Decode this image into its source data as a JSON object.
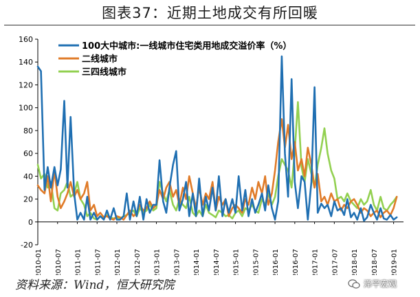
{
  "title": "图表37：近期土地成交有所回暖",
  "source": "资料来源：Wind，恒大研究院",
  "watermark": "泽平宏观",
  "chart_data": {
    "type": "line",
    "title": "图表37：近期土地成交有所回暖",
    "ylim": [
      -20,
      160
    ],
    "yticks": [
      -20,
      0,
      20,
      40,
      60,
      80,
      100,
      120,
      140,
      160
    ],
    "xlim": [
      2010.0,
      2019.25
    ],
    "xticks": [
      "2010-01",
      "2010-07",
      "2011-01",
      "2011-07",
      "2012-01",
      "2012-07",
      "2013-01",
      "2013-07",
      "2014-01",
      "2014-07",
      "2015-01",
      "2015-07",
      "2016-01",
      "2016-07",
      "2017-01",
      "2017-07",
      "2018-01",
      "2018-07",
      "2019-01"
    ],
    "legend_position": "top-left",
    "series": [
      {
        "name": "100大中城市:一线城市住宅类用地成交溢价率（%）",
        "color": "#1f6fb2",
        "x": [
          2010.0,
          2010.08,
          2010.17,
          2010.25,
          2010.33,
          2010.42,
          2010.5,
          2010.58,
          2010.67,
          2010.75,
          2010.83,
          2010.92,
          2011.0,
          2011.08,
          2011.17,
          2011.25,
          2011.33,
          2011.42,
          2011.5,
          2011.58,
          2011.67,
          2011.75,
          2011.83,
          2011.92,
          2012.0,
          2012.08,
          2012.17,
          2012.25,
          2012.33,
          2012.42,
          2012.5,
          2012.58,
          2012.67,
          2012.75,
          2012.83,
          2012.92,
          2013.0,
          2013.08,
          2013.17,
          2013.25,
          2013.33,
          2013.42,
          2013.5,
          2013.58,
          2013.67,
          2013.75,
          2013.83,
          2013.92,
          2014.0,
          2014.08,
          2014.17,
          2014.25,
          2014.33,
          2014.42,
          2014.5,
          2014.58,
          2014.67,
          2014.75,
          2014.83,
          2014.92,
          2015.0,
          2015.08,
          2015.17,
          2015.25,
          2015.33,
          2015.42,
          2015.5,
          2015.58,
          2015.67,
          2015.75,
          2015.83,
          2015.92,
          2016.0,
          2016.08,
          2016.17,
          2016.25,
          2016.33,
          2016.42,
          2016.5,
          2016.58,
          2016.67,
          2016.75,
          2016.83,
          2016.92,
          2017.0,
          2017.08,
          2017.17,
          2017.25,
          2017.33,
          2017.42,
          2017.5,
          2017.58,
          2017.67,
          2017.75,
          2017.83,
          2017.92,
          2018.0,
          2018.08,
          2018.17,
          2018.25,
          2018.33,
          2018.42,
          2018.5,
          2018.58,
          2018.67,
          2018.75,
          2018.83,
          2018.92,
          2019.0,
          2019.08
        ],
        "y": [
          136,
          132,
          28,
          48,
          30,
          48,
          32,
          46,
          106,
          30,
          92,
          25,
          2,
          8,
          2,
          22,
          2,
          8,
          2,
          5,
          2,
          10,
          2,
          12,
          2,
          2,
          5,
          25,
          2,
          18,
          5,
          22,
          2,
          20,
          8,
          15,
          15,
          54,
          18,
          8,
          30,
          50,
          62,
          10,
          20,
          35,
          5,
          25,
          5,
          38,
          5,
          22,
          10,
          30,
          10,
          40,
          5,
          20,
          8,
          20,
          8,
          40,
          10,
          28,
          5,
          20,
          8,
          15,
          25,
          10,
          32,
          12,
          2,
          18,
          145,
          60,
          22,
          125,
          35,
          12,
          40,
          35,
          2,
          35,
          118,
          8,
          16,
          12,
          15,
          5,
          18,
          10,
          12,
          6,
          20,
          4,
          8,
          2,
          12,
          1,
          4,
          15,
          8,
          2,
          12,
          3,
          2,
          6,
          2,
          4
        ]
      },
      {
        "name": "二线城市",
        "color": "#e07b28",
        "x": [
          2010.0,
          2010.08,
          2010.17,
          2010.25,
          2010.33,
          2010.42,
          2010.5,
          2010.58,
          2010.67,
          2010.75,
          2010.83,
          2010.92,
          2011.0,
          2011.08,
          2011.17,
          2011.25,
          2011.33,
          2011.42,
          2011.5,
          2011.58,
          2011.67,
          2011.75,
          2011.83,
          2011.92,
          2012.0,
          2012.08,
          2012.17,
          2012.25,
          2012.33,
          2012.42,
          2012.5,
          2012.58,
          2012.67,
          2012.75,
          2012.83,
          2012.92,
          2013.0,
          2013.08,
          2013.17,
          2013.25,
          2013.33,
          2013.42,
          2013.5,
          2013.58,
          2013.67,
          2013.75,
          2013.83,
          2013.92,
          2014.0,
          2014.08,
          2014.17,
          2014.25,
          2014.33,
          2014.42,
          2014.5,
          2014.58,
          2014.67,
          2014.75,
          2014.83,
          2014.92,
          2015.0,
          2015.08,
          2015.17,
          2015.25,
          2015.33,
          2015.42,
          2015.5,
          2015.58,
          2015.67,
          2015.75,
          2015.83,
          2015.92,
          2016.0,
          2016.08,
          2016.17,
          2016.25,
          2016.33,
          2016.42,
          2016.5,
          2016.58,
          2016.67,
          2016.75,
          2016.83,
          2016.92,
          2017.0,
          2017.08,
          2017.17,
          2017.25,
          2017.33,
          2017.42,
          2017.5,
          2017.58,
          2017.67,
          2017.75,
          2017.83,
          2017.92,
          2018.0,
          2018.08,
          2018.17,
          2018.25,
          2018.33,
          2018.42,
          2018.5,
          2018.58,
          2018.67,
          2018.75,
          2018.83,
          2018.92,
          2019.0,
          2019.08
        ],
        "y": [
          32,
          28,
          25,
          40,
          18,
          45,
          22,
          12,
          18,
          25,
          35,
          22,
          28,
          20,
          25,
          35,
          10,
          15,
          5,
          8,
          4,
          5,
          3,
          2,
          5,
          4,
          2,
          6,
          10,
          5,
          8,
          15,
          10,
          12,
          18,
          12,
          15,
          28,
          20,
          30,
          35,
          22,
          28,
          15,
          30,
          20,
          40,
          25,
          12,
          30,
          15,
          25,
          20,
          35,
          10,
          22,
          15,
          20,
          5,
          12,
          15,
          12,
          8,
          20,
          15,
          30,
          20,
          35,
          25,
          40,
          15,
          25,
          45,
          70,
          90,
          65,
          85,
          55,
          70,
          45,
          55,
          40,
          65,
          50,
          30,
          42,
          18,
          22,
          15,
          25,
          18,
          20,
          10,
          15,
          12,
          18,
          20,
          15,
          8,
          12,
          10,
          5,
          8,
          10,
          4,
          8,
          10,
          6,
          12,
          22
        ]
      },
      {
        "name": "三四线城市",
        "color": "#92d050",
        "x": [
          2010.0,
          2010.08,
          2010.17,
          2010.25,
          2010.33,
          2010.42,
          2010.5,
          2010.58,
          2010.67,
          2010.75,
          2010.83,
          2010.92,
          2011.0,
          2011.08,
          2011.17,
          2011.25,
          2011.33,
          2011.42,
          2011.5,
          2011.58,
          2011.67,
          2011.75,
          2011.83,
          2011.92,
          2012.0,
          2012.08,
          2012.17,
          2012.25,
          2012.33,
          2012.42,
          2012.5,
          2012.58,
          2012.67,
          2012.75,
          2012.83,
          2012.92,
          2013.0,
          2013.08,
          2013.17,
          2013.25,
          2013.33,
          2013.42,
          2013.5,
          2013.58,
          2013.67,
          2013.75,
          2013.83,
          2013.92,
          2014.0,
          2014.08,
          2014.17,
          2014.25,
          2014.33,
          2014.42,
          2014.5,
          2014.58,
          2014.67,
          2014.75,
          2014.83,
          2014.92,
          2015.0,
          2015.08,
          2015.17,
          2015.25,
          2015.33,
          2015.42,
          2015.5,
          2015.58,
          2015.67,
          2015.75,
          2015.83,
          2015.92,
          2016.0,
          2016.08,
          2016.17,
          2016.25,
          2016.33,
          2016.42,
          2016.5,
          2016.58,
          2016.67,
          2016.75,
          2016.83,
          2016.92,
          2017.0,
          2017.08,
          2017.17,
          2017.25,
          2017.33,
          2017.42,
          2017.5,
          2017.58,
          2017.67,
          2017.75,
          2017.83,
          2017.92,
          2018.0,
          2018.08,
          2018.17,
          2018.25,
          2018.33,
          2018.42,
          2018.5,
          2018.58,
          2018.67,
          2018.75,
          2018.83,
          2018.92,
          2019.0,
          2019.08
        ],
        "y": [
          50,
          38,
          42,
          30,
          35,
          12,
          10,
          25,
          28,
          35,
          22,
          25,
          35,
          20,
          15,
          5,
          8,
          3,
          2,
          5,
          3,
          6,
          4,
          3,
          4,
          3,
          5,
          6,
          8,
          10,
          5,
          12,
          8,
          10,
          15,
          10,
          12,
          35,
          25,
          18,
          28,
          15,
          10,
          20,
          15,
          12,
          22,
          8,
          5,
          10,
          5,
          15,
          8,
          6,
          4,
          10,
          8,
          5,
          6,
          3,
          8,
          10,
          5,
          12,
          10,
          15,
          10,
          8,
          20,
          15,
          25,
          15,
          22,
          40,
          55,
          50,
          45,
          30,
          62,
          105,
          48,
          35,
          55,
          42,
          30,
          50,
          65,
          82,
          60,
          45,
          38,
          20,
          22,
          18,
          25,
          18,
          15,
          12,
          20,
          15,
          18,
          28,
          15,
          10,
          22,
          12,
          10,
          15,
          18,
          22
        ]
      }
    ]
  }
}
